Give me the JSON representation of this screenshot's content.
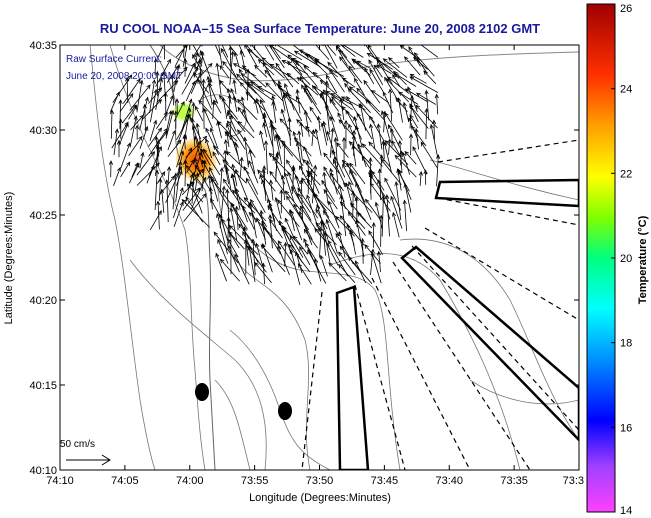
{
  "title": "RU COOL   NOAA–15  Sea Surface Temperature:  June 20, 2008 2102 GMT",
  "annotation": {
    "line1": "Raw Surface Current:",
    "line2": "June 20, 2008 20:00 GMT"
  },
  "scale_label": "50 cm/s",
  "x_axis": {
    "label": "Longitude (Degrees:Minutes)",
    "ticks": [
      "74:10",
      "74:05",
      "74:00",
      "73:55",
      "73:50",
      "73:45",
      "73:40",
      "73:35",
      "73:3"
    ]
  },
  "y_axis": {
    "label": "Latitude (Degrees:Minutes)",
    "ticks": [
      "40:35",
      "40:30",
      "40:25",
      "40:20",
      "40:15",
      "40:10"
    ]
  },
  "colorbar": {
    "label": "Temperature (°C)",
    "ticks": [
      "26",
      "24",
      "22",
      "20",
      "18",
      "16",
      "14"
    ],
    "range": [
      14,
      26
    ],
    "colors": [
      "#ff40ff",
      "#8000ff",
      "#0000ff",
      "#00c0ff",
      "#00ffff",
      "#00ff80",
      "#80ff00",
      "#ffff00",
      "#ffa000",
      "#ff4000",
      "#cc0000",
      "#a00000"
    ]
  },
  "colors": {
    "title": "#1a1aa0",
    "warm_patch": "#ff6a00",
    "cool_patch": "#b8ff30"
  }
}
